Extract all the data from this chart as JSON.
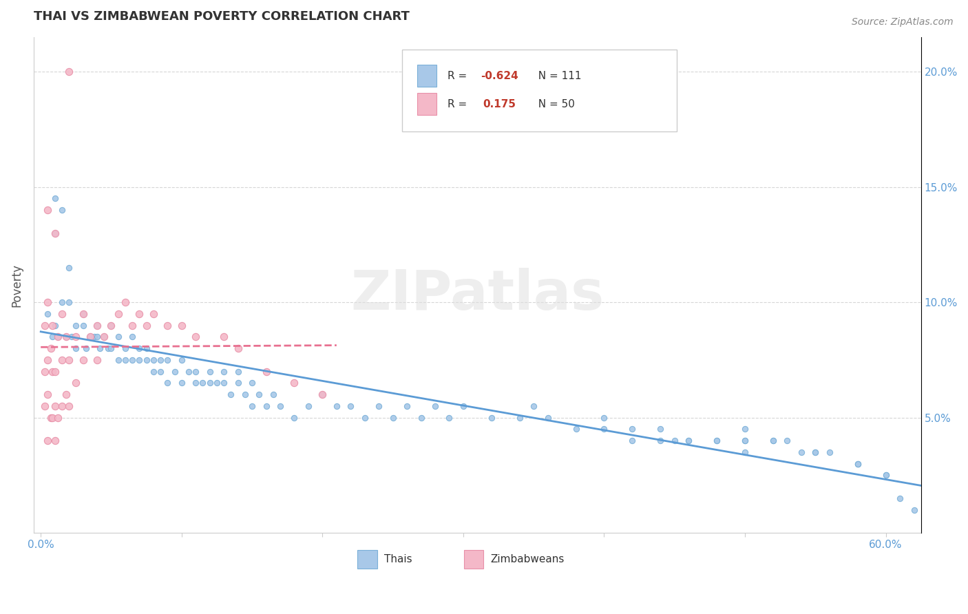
{
  "title": "THAI VS ZIMBABWEAN POVERTY CORRELATION CHART",
  "source": "Source: ZipAtlas.com",
  "ylabel": "Poverty",
  "ylim": [
    0,
    0.215
  ],
  "xlim": [
    -0.005,
    0.625
  ],
  "thai_color": "#a8c8e8",
  "thai_edge_color": "#7ab0d8",
  "zimbabwe_color": "#f4b8c8",
  "zimbabwe_edge_color": "#e890a8",
  "thai_line_color": "#5b9bd5",
  "zimbabwe_line_color": "#e87090",
  "watermark": "ZIPatlas",
  "legend": {
    "thai_R": "-0.624",
    "thai_N": "111",
    "zim_R": "0.175",
    "zim_N": "50"
  },
  "thai_scatter_x": [
    0.005,
    0.008,
    0.01,
    0.01,
    0.01,
    0.012,
    0.015,
    0.015,
    0.018,
    0.02,
    0.02,
    0.022,
    0.025,
    0.025,
    0.03,
    0.03,
    0.032,
    0.035,
    0.038,
    0.04,
    0.04,
    0.042,
    0.045,
    0.048,
    0.05,
    0.05,
    0.055,
    0.055,
    0.06,
    0.06,
    0.065,
    0.065,
    0.07,
    0.07,
    0.075,
    0.075,
    0.08,
    0.08,
    0.085,
    0.085,
    0.09,
    0.09,
    0.095,
    0.1,
    0.1,
    0.105,
    0.11,
    0.11,
    0.115,
    0.12,
    0.12,
    0.125,
    0.13,
    0.13,
    0.135,
    0.14,
    0.14,
    0.145,
    0.15,
    0.15,
    0.155,
    0.16,
    0.165,
    0.17,
    0.18,
    0.19,
    0.2,
    0.21,
    0.22,
    0.23,
    0.24,
    0.25,
    0.26,
    0.27,
    0.28,
    0.29,
    0.3,
    0.32,
    0.34,
    0.35,
    0.36,
    0.38,
    0.4,
    0.42,
    0.44,
    0.46,
    0.48,
    0.5,
    0.52,
    0.53,
    0.55,
    0.56,
    0.58,
    0.6,
    0.62,
    0.48,
    0.5,
    0.54,
    0.58,
    0.6,
    0.44,
    0.46,
    0.5,
    0.52,
    0.55,
    0.58,
    0.61,
    0.4,
    0.42,
    0.45,
    0.5
  ],
  "thai_scatter_y": [
    0.095,
    0.085,
    0.13,
    0.145,
    0.09,
    0.085,
    0.14,
    0.1,
    0.085,
    0.1,
    0.115,
    0.085,
    0.09,
    0.08,
    0.095,
    0.09,
    0.08,
    0.085,
    0.085,
    0.09,
    0.085,
    0.08,
    0.085,
    0.08,
    0.09,
    0.08,
    0.075,
    0.085,
    0.08,
    0.075,
    0.085,
    0.075,
    0.08,
    0.075,
    0.08,
    0.075,
    0.075,
    0.07,
    0.075,
    0.07,
    0.075,
    0.065,
    0.07,
    0.075,
    0.065,
    0.07,
    0.065,
    0.07,
    0.065,
    0.065,
    0.07,
    0.065,
    0.065,
    0.07,
    0.06,
    0.065,
    0.07,
    0.06,
    0.065,
    0.055,
    0.06,
    0.055,
    0.06,
    0.055,
    0.05,
    0.055,
    0.06,
    0.055,
    0.055,
    0.05,
    0.055,
    0.05,
    0.055,
    0.05,
    0.055,
    0.05,
    0.055,
    0.05,
    0.05,
    0.055,
    0.05,
    0.045,
    0.05,
    0.045,
    0.045,
    0.04,
    0.04,
    0.045,
    0.04,
    0.04,
    0.035,
    0.035,
    0.03,
    0.025,
    0.01,
    0.04,
    0.04,
    0.035,
    0.03,
    0.025,
    0.04,
    0.04,
    0.035,
    0.04,
    0.035,
    0.03,
    0.015,
    0.045,
    0.04,
    0.04,
    0.04
  ],
  "zimbabwe_scatter_x": [
    0.003,
    0.003,
    0.003,
    0.005,
    0.005,
    0.005,
    0.005,
    0.005,
    0.007,
    0.007,
    0.008,
    0.008,
    0.008,
    0.01,
    0.01,
    0.01,
    0.01,
    0.012,
    0.012,
    0.015,
    0.015,
    0.015,
    0.018,
    0.018,
    0.02,
    0.02,
    0.02,
    0.025,
    0.025,
    0.03,
    0.03,
    0.035,
    0.04,
    0.04,
    0.045,
    0.05,
    0.055,
    0.06,
    0.065,
    0.07,
    0.075,
    0.08,
    0.09,
    0.1,
    0.11,
    0.13,
    0.14,
    0.16,
    0.18,
    0.2
  ],
  "zimbabwe_scatter_y": [
    0.055,
    0.07,
    0.09,
    0.04,
    0.06,
    0.075,
    0.1,
    0.14,
    0.05,
    0.08,
    0.05,
    0.07,
    0.09,
    0.04,
    0.055,
    0.07,
    0.13,
    0.05,
    0.085,
    0.055,
    0.075,
    0.095,
    0.06,
    0.085,
    0.055,
    0.075,
    0.2,
    0.065,
    0.085,
    0.075,
    0.095,
    0.085,
    0.075,
    0.09,
    0.085,
    0.09,
    0.095,
    0.1,
    0.09,
    0.095,
    0.09,
    0.095,
    0.09,
    0.09,
    0.085,
    0.085,
    0.08,
    0.07,
    0.065,
    0.06
  ]
}
